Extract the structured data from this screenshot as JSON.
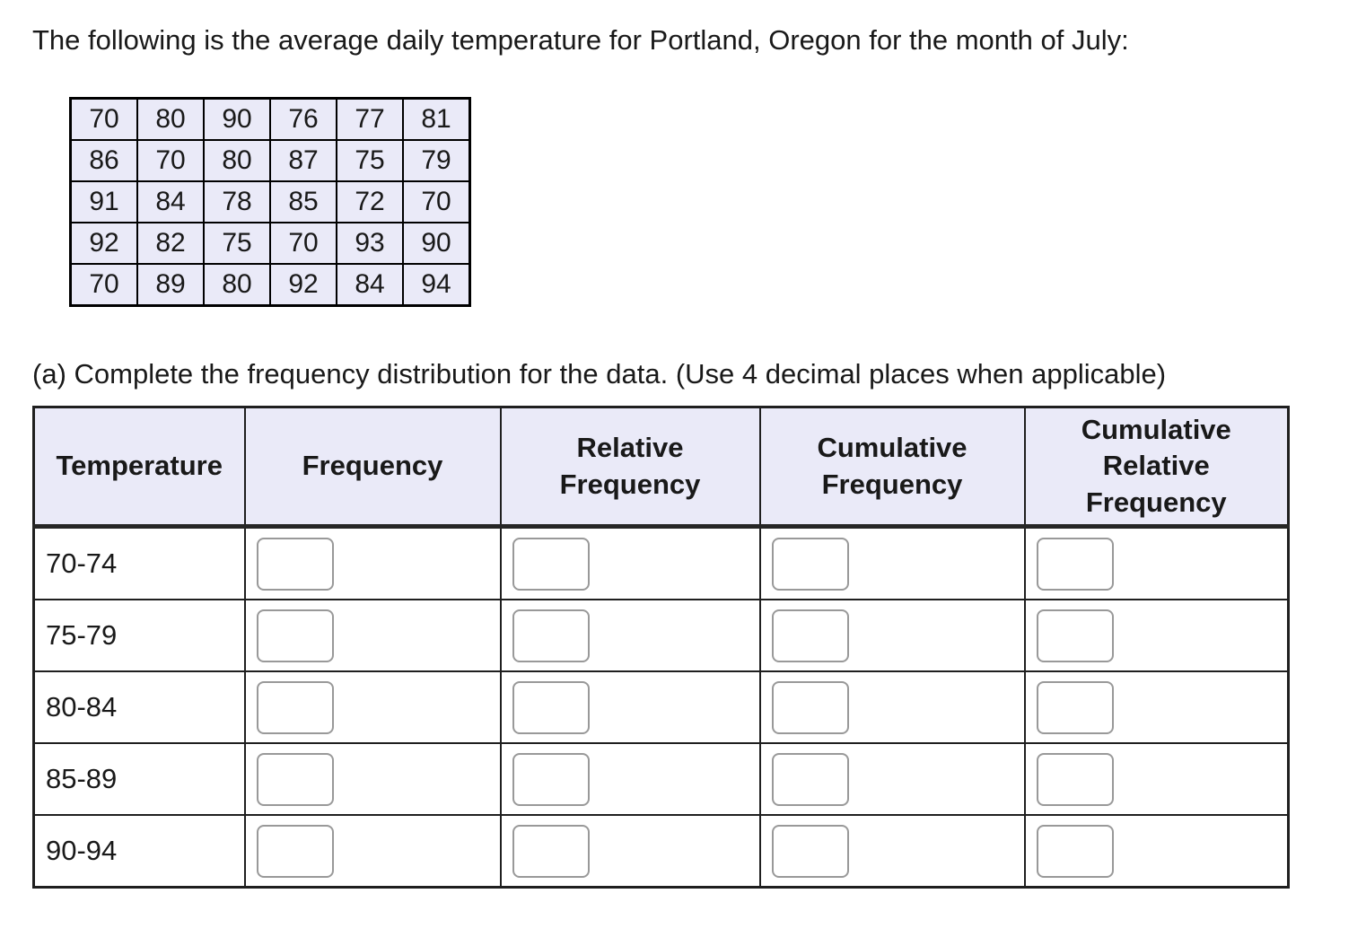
{
  "page": {
    "intro_text": "The following is the average daily temperature for Portland, Oregon for the month of July:",
    "question_text": "(a) Complete the frequency distribution for the data. (Use 4 decimal places when applicable)"
  },
  "temperature_table": {
    "rows": [
      [
        "70",
        "80",
        "90",
        "76",
        "77",
        "81"
      ],
      [
        "86",
        "70",
        "80",
        "87",
        "75",
        "79"
      ],
      [
        "91",
        "84",
        "78",
        "85",
        "72",
        "70"
      ],
      [
        "92",
        "82",
        "75",
        "70",
        "93",
        "90"
      ],
      [
        "70",
        "89",
        "80",
        "92",
        "84",
        "94"
      ]
    ]
  },
  "frequency_table": {
    "columns": [
      "Temperature",
      "Frequency",
      "Relative Frequency",
      "Cumulative Frequency",
      "Cumulative Relative Frequency"
    ],
    "rows": [
      {
        "temperature_range": "70-74",
        "frequency": "",
        "relative_frequency": "",
        "cumulative_frequency": "",
        "cumulative_relative_frequency": ""
      },
      {
        "temperature_range": "75-79",
        "frequency": "",
        "relative_frequency": "",
        "cumulative_frequency": "",
        "cumulative_relative_frequency": ""
      },
      {
        "temperature_range": "80-84",
        "frequency": "",
        "relative_frequency": "",
        "cumulative_frequency": "",
        "cumulative_relative_frequency": ""
      },
      {
        "temperature_range": "85-89",
        "frequency": "",
        "relative_frequency": "",
        "cumulative_frequency": "",
        "cumulative_relative_frequency": ""
      },
      {
        "temperature_range": "90-94",
        "frequency": "",
        "relative_frequency": "",
        "cumulative_frequency": "",
        "cumulative_relative_frequency": ""
      }
    ]
  },
  "colors": {
    "highlight_bg": "#eaeaf8",
    "frequency_table_border": "#1f1f1f",
    "data_table_border": "#000000",
    "input_border": "#999999"
  }
}
